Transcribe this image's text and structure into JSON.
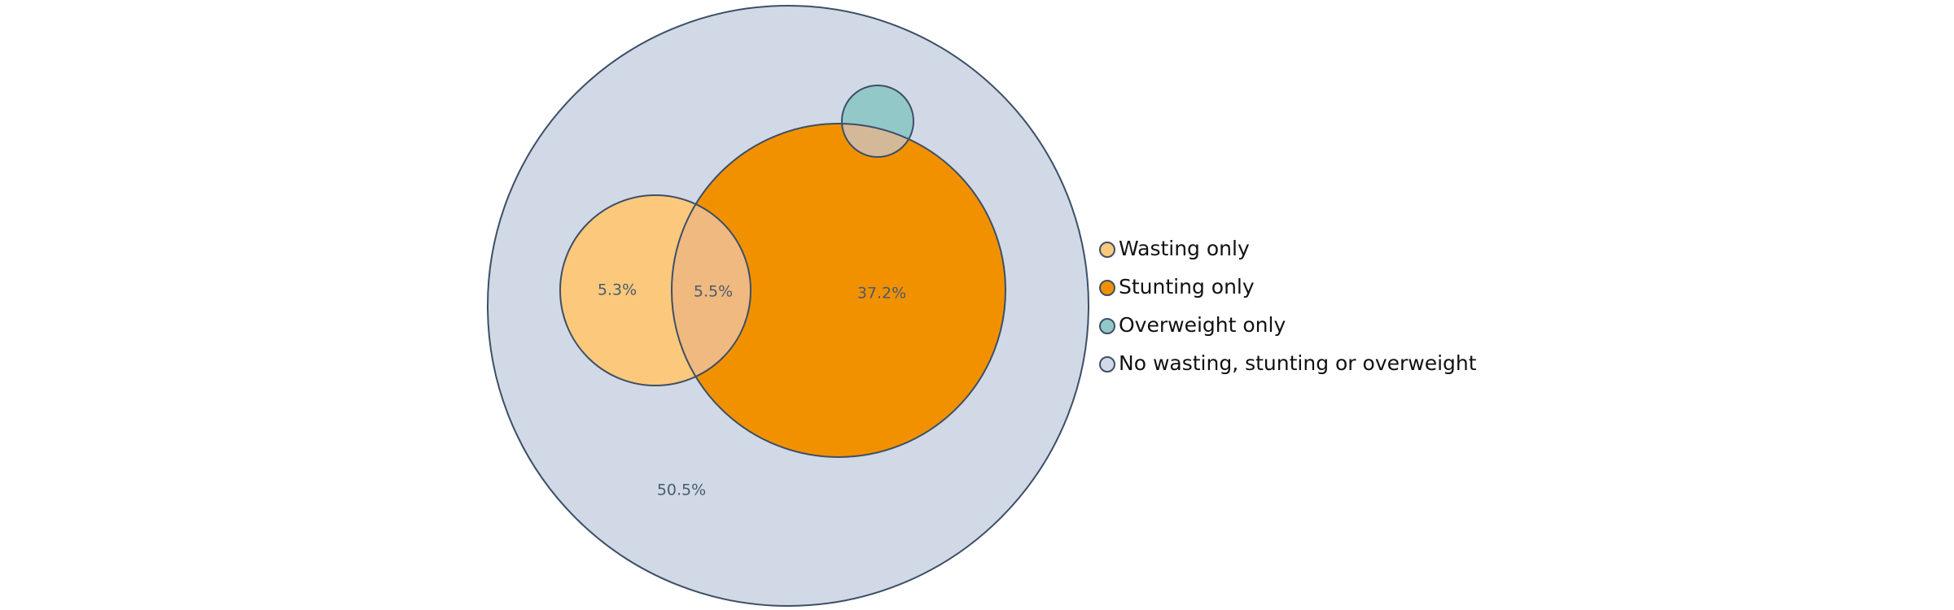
{
  "chart_data": {
    "type": "venn",
    "sets": [
      {
        "name": "Wasting only",
        "color": "#fcc97c"
      },
      {
        "name": "Stunting only",
        "color": "#f29100"
      },
      {
        "name": "Overweight only",
        "color": "#93c8c8"
      },
      {
        "name": "No wasting, stunting or overweight",
        "color": "#d0d9e5"
      }
    ],
    "overlap_colors": {
      "wasting_stunting": "#f0b97f",
      "stunting_overweight": "#d4b998"
    },
    "outline_color": "#3d4f66",
    "region_labels": [
      {
        "region": "wasting",
        "text": "5.3%"
      },
      {
        "region": "wasting_stunting",
        "text": "5.5%"
      },
      {
        "region": "stunting",
        "text": "37.2%"
      },
      {
        "region": "none",
        "text": "50.5%"
      }
    ],
    "legend": {
      "placement": "right",
      "entries": [
        "Wasting only",
        "Stunting only",
        "Overweight only",
        "No wasting, stunting or overweight"
      ]
    }
  }
}
